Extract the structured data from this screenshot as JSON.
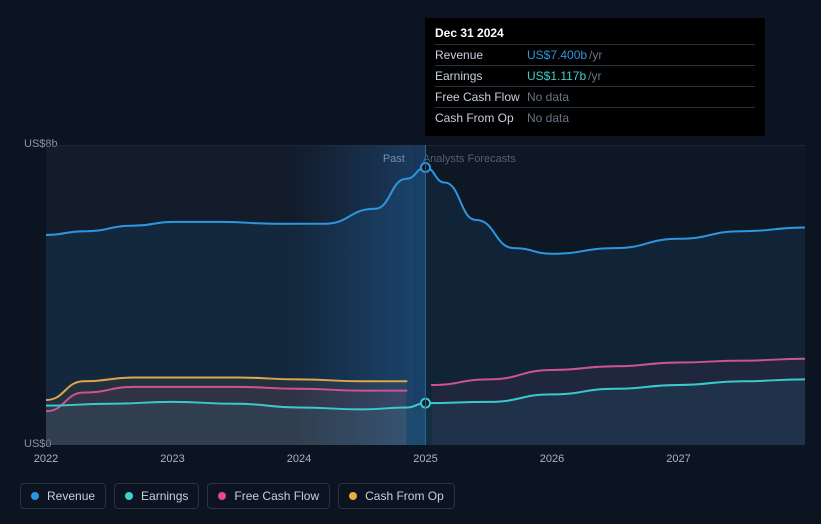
{
  "tooltip": {
    "date": "Dec 31 2024",
    "rows": [
      {
        "label": "Revenue",
        "value": "US$7.400b",
        "suffix": "/yr",
        "color": "#2c97de"
      },
      {
        "label": "Earnings",
        "value": "US$1.117b",
        "suffix": "/yr",
        "color": "#3fd0c9"
      },
      {
        "label": "Free Cash Flow",
        "nodata": "No data"
      },
      {
        "label": "Cash From Op",
        "nodata": "No data"
      }
    ]
  },
  "chart": {
    "type": "area",
    "xlim": [
      2022,
      2028
    ],
    "ylim": [
      0,
      8
    ],
    "xticks": [
      2022,
      2023,
      2024,
      2025,
      2026,
      2027
    ],
    "ylabels": [
      {
        "value": 8,
        "text": "US$8b"
      },
      {
        "value": 0,
        "text": "US$0"
      }
    ],
    "past_boundary_x": 2024.9,
    "past_label": "Past",
    "forecast_label": "Analysts Forecasts",
    "cursor_x": 2025,
    "past_shade_start": 2023.95,
    "past_shade_end": 2025,
    "background": "#0d1421",
    "plot_bg_past": "rgba(30,42,62,0.35)",
    "plot_bg_forecast": "rgba(20,30,48,0.25)",
    "series": [
      {
        "name": "Revenue",
        "color": "#2c97de",
        "fill": "rgba(44,151,222,0.10)",
        "points": [
          [
            2022,
            5.6
          ],
          [
            2022.3,
            5.7
          ],
          [
            2022.7,
            5.85
          ],
          [
            2023,
            5.95
          ],
          [
            2023.4,
            5.95
          ],
          [
            2023.8,
            5.9
          ],
          [
            2024.2,
            5.9
          ],
          [
            2024.6,
            6.3
          ],
          [
            2024.85,
            7.1
          ],
          [
            2025,
            7.4
          ],
          [
            2025.15,
            7.0
          ],
          [
            2025.4,
            6.0
          ],
          [
            2025.7,
            5.25
          ],
          [
            2026,
            5.1
          ],
          [
            2026.5,
            5.25
          ],
          [
            2027,
            5.5
          ],
          [
            2027.5,
            5.7
          ],
          [
            2028,
            5.8
          ]
        ],
        "markers": [
          [
            2025,
            7.4
          ]
        ]
      },
      {
        "name": "Earnings",
        "color": "#3fd0c9",
        "fill": "rgba(63,208,201,0.08)",
        "points": [
          [
            2022,
            1.05
          ],
          [
            2022.5,
            1.1
          ],
          [
            2023,
            1.15
          ],
          [
            2023.5,
            1.1
          ],
          [
            2024,
            1.0
          ],
          [
            2024.5,
            0.95
          ],
          [
            2024.85,
            1.0
          ],
          [
            2025,
            1.117
          ],
          [
            2025.5,
            1.15
          ],
          [
            2026,
            1.35
          ],
          [
            2026.5,
            1.5
          ],
          [
            2027,
            1.6
          ],
          [
            2027.5,
            1.7
          ],
          [
            2028,
            1.75
          ]
        ],
        "markers": [
          [
            2025,
            1.117
          ]
        ]
      },
      {
        "name": "Free Cash Flow",
        "color": "#e34b8b",
        "fill": "rgba(227,75,139,0.08)",
        "points_past": [
          [
            2022,
            0.9
          ],
          [
            2022.3,
            1.4
          ],
          [
            2022.7,
            1.55
          ],
          [
            2023,
            1.55
          ],
          [
            2023.5,
            1.55
          ],
          [
            2024,
            1.5
          ],
          [
            2024.5,
            1.45
          ],
          [
            2024.85,
            1.45
          ]
        ],
        "points_forecast": [
          [
            2025.05,
            1.6
          ],
          [
            2025.5,
            1.75
          ],
          [
            2026,
            2.0
          ],
          [
            2026.5,
            2.1
          ],
          [
            2027,
            2.2
          ],
          [
            2027.5,
            2.25
          ],
          [
            2028,
            2.3
          ]
        ]
      },
      {
        "name": "Cash From Op",
        "color": "#f2a93b",
        "fill": "rgba(242,169,59,0.08)",
        "points_past": [
          [
            2022,
            1.2
          ],
          [
            2022.3,
            1.7
          ],
          [
            2022.7,
            1.8
          ],
          [
            2023,
            1.8
          ],
          [
            2023.5,
            1.8
          ],
          [
            2024,
            1.75
          ],
          [
            2024.5,
            1.7
          ],
          [
            2024.85,
            1.7
          ]
        ]
      }
    ],
    "legend": [
      {
        "label": "Revenue",
        "color": "#2c97de"
      },
      {
        "label": "Earnings",
        "color": "#3fd0c9"
      },
      {
        "label": "Free Cash Flow",
        "color": "#e34b8b"
      },
      {
        "label": "Cash From Op",
        "color": "#f2a93b"
      }
    ]
  }
}
